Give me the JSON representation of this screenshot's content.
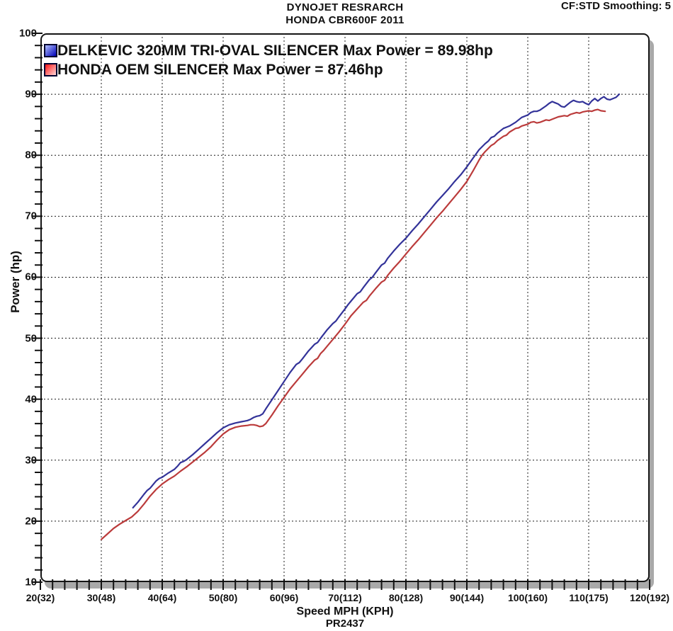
{
  "header": {
    "title_line1": "DYNOJET RESRARCH",
    "title_line2": "HONDA CBR600F 2011",
    "cf_text": "CF:STD Smoothing: 5"
  },
  "chart_data": {
    "type": "line",
    "title": "DYNOJET RESRARCH",
    "subtitle": "HONDA CBR600F 2011",
    "xlabel": "Speed MPH (KPH)",
    "ylabel": "Power (hp)",
    "plot_subtitle": "PR2437",
    "xlim": [
      20,
      120
    ],
    "ylim": [
      10,
      100
    ],
    "grid": "dashed",
    "grid_x": [
      30,
      40,
      50,
      60,
      70,
      80,
      90,
      100,
      110
    ],
    "grid_y": [
      20,
      30,
      40,
      50,
      60,
      70,
      80,
      90
    ],
    "minor_tick_step_x": 2,
    "minor_tick_step_y": 2,
    "legend_position": "top-left",
    "x_ticks": [
      {
        "value": 20,
        "label": "20(32)"
      },
      {
        "value": 30,
        "label": "30(48)"
      },
      {
        "value": 40,
        "label": "40(64)"
      },
      {
        "value": 50,
        "label": "50(80)"
      },
      {
        "value": 60,
        "label": "60(96)"
      },
      {
        "value": 70,
        "label": "70(112)"
      },
      {
        "value": 80,
        "label": "80(128)"
      },
      {
        "value": 90,
        "label": "90(144)"
      },
      {
        "value": 100,
        "label": "100(160)"
      },
      {
        "value": 110,
        "label": "110(175)"
      },
      {
        "value": 120,
        "label": "120(192)"
      }
    ],
    "y_ticks": [
      {
        "value": 10,
        "label": "10"
      },
      {
        "value": 20,
        "label": "20"
      },
      {
        "value": 30,
        "label": "30"
      },
      {
        "value": 40,
        "label": "40"
      },
      {
        "value": 50,
        "label": "50"
      },
      {
        "value": 60,
        "label": "60"
      },
      {
        "value": 70,
        "label": "70"
      },
      {
        "value": 80,
        "label": "80"
      },
      {
        "value": 90,
        "label": "90"
      },
      {
        "value": 100,
        "label": "100"
      }
    ],
    "series": [
      {
        "name": "DELKEVIC 320MM TRI-OVAL SILENCER",
        "legend_label": "DELKEVIC 320MM TRI-OVAL SILENCER  Max Power = 89.98hp",
        "max_power_hp": 89.98,
        "color": "#333399",
        "swatch": {
          "from": "#b0c0ff",
          "to": "#0000b8"
        },
        "points": [
          [
            35.2,
            22.2
          ],
          [
            36,
            23.1
          ],
          [
            37,
            24.4
          ],
          [
            37.5,
            25
          ],
          [
            38,
            25.4
          ],
          [
            39,
            26.6
          ],
          [
            39.5,
            27
          ],
          [
            40,
            27.2
          ],
          [
            41,
            27.9
          ],
          [
            42,
            28.5
          ],
          [
            42.5,
            29
          ],
          [
            43,
            29.6
          ],
          [
            43.5,
            29.8
          ],
          [
            44,
            30.1
          ],
          [
            45,
            30.9
          ],
          [
            46,
            31.8
          ],
          [
            47,
            32.7
          ],
          [
            48,
            33.6
          ],
          [
            49,
            34.5
          ],
          [
            50,
            35.3
          ],
          [
            51,
            35.8
          ],
          [
            52,
            36.1
          ],
          [
            53,
            36.3
          ],
          [
            53.5,
            36.4
          ],
          [
            54,
            36.5
          ],
          [
            54.5,
            36.7
          ],
          [
            55,
            37
          ],
          [
            55.5,
            37.2
          ],
          [
            56,
            37.3
          ],
          [
            56.5,
            37.6
          ],
          [
            57,
            38.4
          ],
          [
            58,
            39.9
          ],
          [
            59,
            41.4
          ],
          [
            60,
            42.9
          ],
          [
            61,
            44.4
          ],
          [
            62,
            45.7
          ],
          [
            62.5,
            46
          ],
          [
            63,
            46.6
          ],
          [
            64,
            47.9
          ],
          [
            65,
            49
          ],
          [
            65.5,
            49.3
          ],
          [
            66,
            50
          ],
          [
            67,
            51.3
          ],
          [
            68,
            52.4
          ],
          [
            68.5,
            52.8
          ],
          [
            69,
            53.5
          ],
          [
            70,
            54.8
          ],
          [
            70.5,
            55.5
          ],
          [
            71,
            56.1
          ],
          [
            72,
            57.3
          ],
          [
            72.5,
            57.6
          ],
          [
            73,
            58.3
          ],
          [
            74,
            59.6
          ],
          [
            74.5,
            60
          ],
          [
            75,
            60.7
          ],
          [
            76,
            62
          ],
          [
            76.5,
            62.3
          ],
          [
            77,
            63.1
          ],
          [
            78,
            64.3
          ],
          [
            79,
            65.4
          ],
          [
            80,
            66.4
          ],
          [
            81,
            67.6
          ],
          [
            82,
            68.7
          ],
          [
            83,
            69.9
          ],
          [
            84,
            71.1
          ],
          [
            85,
            72.3
          ],
          [
            86,
            73.4
          ],
          [
            87,
            74.5
          ],
          [
            88,
            75.7
          ],
          [
            89,
            76.8
          ],
          [
            90,
            78.1
          ],
          [
            91,
            79.5
          ],
          [
            92,
            80.9
          ],
          [
            93,
            81.9
          ],
          [
            93.5,
            82.3
          ],
          [
            94,
            82.9
          ],
          [
            94.5,
            83.1
          ],
          [
            95,
            83.6
          ],
          [
            96,
            84.4
          ],
          [
            96.5,
            84.6
          ],
          [
            97,
            84.8
          ],
          [
            98,
            85.4
          ],
          [
            99,
            86.2
          ],
          [
            100,
            86.6
          ],
          [
            100.5,
            87
          ],
          [
            101,
            87.2
          ],
          [
            101.5,
            87.2
          ],
          [
            102,
            87.4
          ],
          [
            103,
            88.1
          ],
          [
            103.5,
            88.5
          ],
          [
            104,
            88.8
          ],
          [
            104.5,
            88.6
          ],
          [
            105,
            88.4
          ],
          [
            105.5,
            88
          ],
          [
            106,
            87.9
          ],
          [
            106.5,
            88.3
          ],
          [
            107,
            88.7
          ],
          [
            107.5,
            89
          ],
          [
            108,
            88.8
          ],
          [
            108.5,
            88.7
          ],
          [
            109,
            88.8
          ],
          [
            109.5,
            88.5
          ],
          [
            110,
            88.3
          ],
          [
            110.5,
            88.9
          ],
          [
            111,
            89.3
          ],
          [
            111.5,
            88.9
          ],
          [
            112,
            89.3
          ],
          [
            112.5,
            89.6
          ],
          [
            113,
            89.2
          ],
          [
            113.5,
            89.1
          ],
          [
            114,
            89.3
          ],
          [
            114.5,
            89.5
          ],
          [
            115,
            90
          ]
        ]
      },
      {
        "name": "HONDA OEM SILENCER",
        "legend_label": "HONDA OEM SILENCER Max Power = 87.46hp",
        "max_power_hp": 87.46,
        "color": "#bb3b3b",
        "swatch": {
          "from": "#ff1515",
          "to": "#ffd8d8"
        },
        "points": [
          [
            30,
            17
          ],
          [
            31,
            17.9
          ],
          [
            32,
            18.8
          ],
          [
            33,
            19.5
          ],
          [
            34,
            20.1
          ],
          [
            35,
            20.7
          ],
          [
            36,
            21.6
          ],
          [
            37,
            22.8
          ],
          [
            38,
            24.1
          ],
          [
            39,
            25.2
          ],
          [
            40,
            26.1
          ],
          [
            41,
            26.8
          ],
          [
            42,
            27.4
          ],
          [
            43,
            28.2
          ],
          [
            44,
            28.9
          ],
          [
            45,
            29.7
          ],
          [
            46,
            30.5
          ],
          [
            47,
            31.3
          ],
          [
            48,
            32.2
          ],
          [
            49,
            33.3
          ],
          [
            50,
            34.3
          ],
          [
            51,
            35
          ],
          [
            52,
            35.4
          ],
          [
            53,
            35.6
          ],
          [
            54,
            35.7
          ],
          [
            54.5,
            35.8
          ],
          [
            55,
            35.8
          ],
          [
            55.5,
            35.7
          ],
          [
            56,
            35.5
          ],
          [
            56.5,
            35.6
          ],
          [
            57,
            36
          ],
          [
            58,
            37.4
          ],
          [
            59,
            38.9
          ],
          [
            60,
            40.3
          ],
          [
            61,
            41.7
          ],
          [
            62,
            42.9
          ],
          [
            63,
            44.1
          ],
          [
            64,
            45.3
          ],
          [
            65,
            46.4
          ],
          [
            65.5,
            46.7
          ],
          [
            66,
            47.5
          ],
          [
            66.5,
            48
          ],
          [
            67,
            48.6
          ],
          [
            68,
            49.8
          ],
          [
            69,
            51
          ],
          [
            70,
            52.3
          ],
          [
            70.5,
            53
          ],
          [
            71,
            53.7
          ],
          [
            72,
            54.8
          ],
          [
            73,
            55.9
          ],
          [
            73.5,
            56.2
          ],
          [
            74,
            56.9
          ],
          [
            75,
            58.1
          ],
          [
            76,
            59.2
          ],
          [
            76.5,
            59.5
          ],
          [
            77,
            60.3
          ],
          [
            78,
            61.5
          ],
          [
            79,
            62.6
          ],
          [
            80,
            63.8
          ],
          [
            81,
            65
          ],
          [
            82,
            66.1
          ],
          [
            83,
            67.3
          ],
          [
            84,
            68.5
          ],
          [
            85,
            69.7
          ],
          [
            86,
            70.8
          ],
          [
            87,
            72
          ],
          [
            88,
            73.2
          ],
          [
            89,
            74.4
          ],
          [
            90,
            75.7
          ],
          [
            91,
            77.4
          ],
          [
            92,
            79.2
          ],
          [
            92.5,
            80
          ],
          [
            93,
            80.6
          ],
          [
            94,
            81.6
          ],
          [
            94.5,
            81.9
          ],
          [
            95,
            82.4
          ],
          [
            96,
            83.1
          ],
          [
            96.5,
            83.3
          ],
          [
            97,
            83.8
          ],
          [
            98,
            84.4
          ],
          [
            98.5,
            84.5
          ],
          [
            99,
            84.8
          ],
          [
            100,
            85.1
          ],
          [
            100.5,
            85.4
          ],
          [
            101,
            85.5
          ],
          [
            101.5,
            85.3
          ],
          [
            102,
            85.4
          ],
          [
            103,
            85.8
          ],
          [
            103.5,
            85.7
          ],
          [
            104,
            85.9
          ],
          [
            105,
            86.3
          ],
          [
            106,
            86.5
          ],
          [
            106.5,
            86.4
          ],
          [
            107,
            86.7
          ],
          [
            108,
            87
          ],
          [
            108.5,
            86.9
          ],
          [
            109,
            87.1
          ],
          [
            110,
            87.3
          ],
          [
            110.5,
            87.2
          ],
          [
            111,
            87.4
          ],
          [
            111.5,
            87.5
          ],
          [
            112,
            87.3
          ],
          [
            112.7,
            87.2
          ]
        ]
      }
    ]
  }
}
